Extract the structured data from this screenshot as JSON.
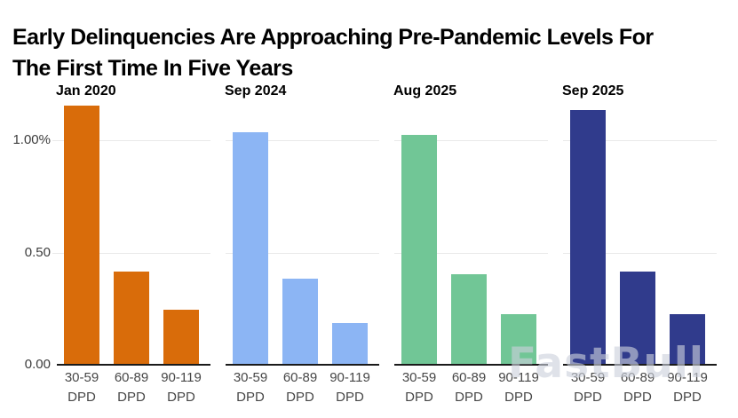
{
  "header": {
    "line1": "Early Delinquencies Are Approaching Pre-Pandemic Levels For",
    "line2": "The First Time In Five Years"
  },
  "watermark": "FastBull",
  "chart_data": {
    "type": "bar",
    "layout": "four side-by-side facets (one per date), each with 3 columns; gridlines on; no legend (facet labels above each group)",
    "title": "Early Delinquencies Are Approaching Pre-Pandemic Levels For The First Time In Five Years",
    "xlabel": "",
    "ylabel": "",
    "categories": [
      [
        "30-59",
        "DPD"
      ],
      [
        "60-89",
        "DPD"
      ],
      [
        "90-119",
        "DPD"
      ]
    ],
    "series": [
      {
        "name": "Jan 2020",
        "color": "#D96C0A",
        "values": [
          1.15,
          0.41,
          0.24
        ]
      },
      {
        "name": "Sep 2024",
        "color": "#8CB5F4",
        "values": [
          1.03,
          0.38,
          0.18
        ]
      },
      {
        "name": "Aug 2025",
        "color": "#71C696",
        "values": [
          1.02,
          0.4,
          0.22
        ]
      },
      {
        "name": "Sep 2025",
        "color": "#303B8C",
        "values": [
          1.13,
          0.41,
          0.22
        ]
      }
    ],
    "y_ticks": [
      {
        "value": 1.0,
        "label": "1.00%"
      },
      {
        "value": 0.5,
        "label": "0.50"
      },
      {
        "value": 0.0,
        "label": "0.00"
      }
    ],
    "ylim": [
      0,
      1.17
    ],
    "y_unit": "%",
    "grid": true
  },
  "colors": {
    "axis_line": "#1a1a1a",
    "gridline": "#e9e9e9",
    "tick_text": "#474747",
    "ytick_text": "#3c3c3c",
    "title_text": "#000000",
    "background": "#ffffff"
  }
}
